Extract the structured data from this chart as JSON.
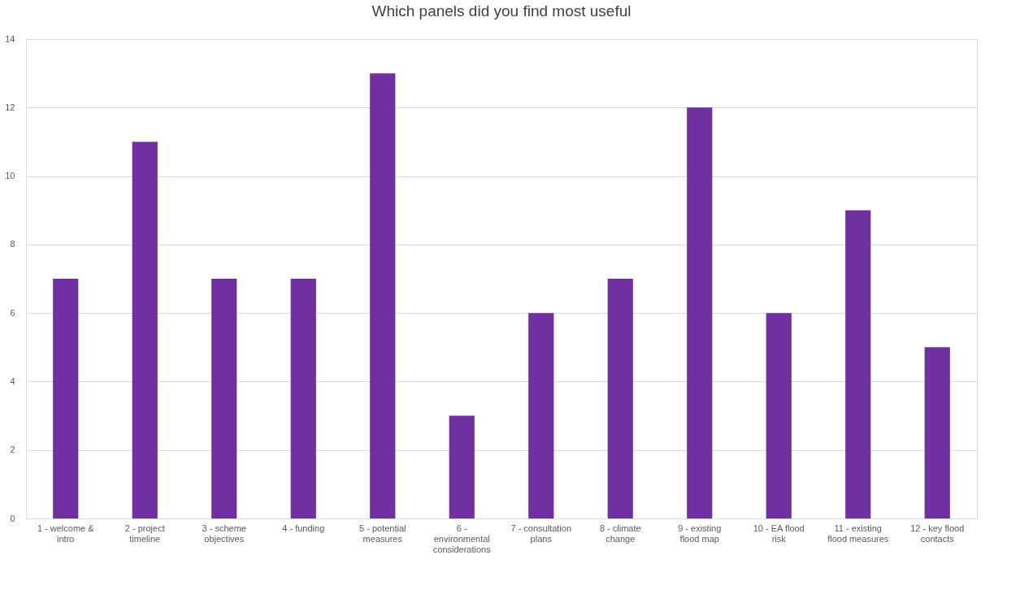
{
  "chart_data": {
    "type": "bar",
    "title": "Which panels did you find most useful",
    "categories": [
      "1 - welcome & intro",
      "2 - project timeline",
      "3 - scheme objectives",
      "4 - funding",
      "5 - potential measures",
      "6 - environmental considerations",
      "7 - consultation plans",
      "8 - climate change",
      "9 - existing flood map",
      "10 - EA flood risk",
      "11 - existing flood measures",
      "12 - key flood contacts"
    ],
    "values": [
      7,
      11,
      7,
      7,
      13,
      3,
      6,
      7,
      12,
      6,
      9,
      5
    ],
    "color": "#7030a0",
    "ylim": [
      0,
      14
    ],
    "yticks": [
      0,
      2,
      4,
      6,
      8,
      10,
      12,
      14
    ],
    "grid": "y"
  }
}
